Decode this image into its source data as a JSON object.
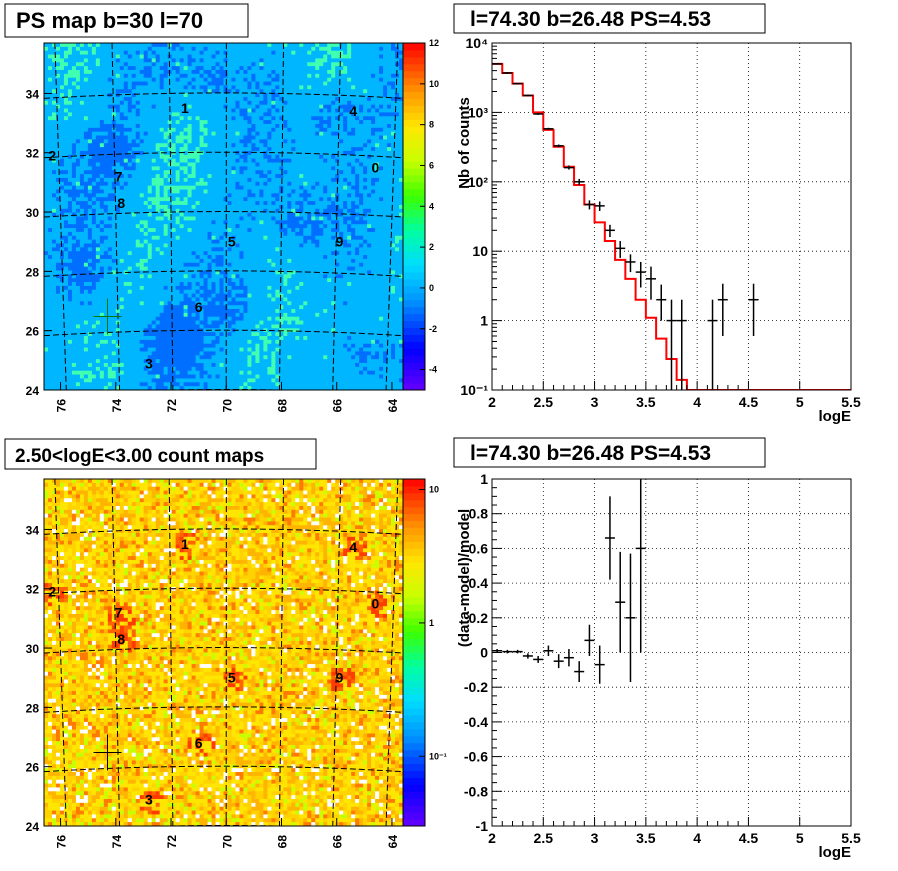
{
  "panels": {
    "ps_map": {
      "title": "PS map b=30 l=70",
      "x_ticks": [
        "76",
        "74",
        "72",
        "70",
        "68",
        "66",
        "64"
      ],
      "y_ticks": [
        "24",
        "26",
        "28",
        "30",
        "32",
        "34"
      ],
      "colorbar_ticks": [
        "-4",
        "-2",
        "0",
        "2",
        "4",
        "6",
        "8",
        "10",
        "12"
      ],
      "sources": [
        {
          "label": "0",
          "l": 64.6,
          "b": 31.5
        },
        {
          "label": "1",
          "l": 71.5,
          "b": 33.5
        },
        {
          "label": "2",
          "l": 76.3,
          "b": 31.9
        },
        {
          "label": "3",
          "l": 72.8,
          "b": 24.9
        },
        {
          "label": "4",
          "l": 65.4,
          "b": 33.4
        },
        {
          "label": "5",
          "l": 69.8,
          "b": 29.0
        },
        {
          "label": "6",
          "l": 71.0,
          "b": 26.8
        },
        {
          "label": "7",
          "l": 73.9,
          "b": 31.2
        },
        {
          "label": "8",
          "l": 73.8,
          "b": 30.3
        },
        {
          "label": "9",
          "l": 65.9,
          "b": 29.0
        }
      ],
      "marker": {
        "l": 74.3,
        "b": 26.48
      }
    },
    "count_map": {
      "title": "2.50<logE<3.00 count maps",
      "x_ticks": [
        "76",
        "74",
        "72",
        "70",
        "68",
        "66",
        "64"
      ],
      "y_ticks": [
        "24",
        "26",
        "28",
        "30",
        "32",
        "34"
      ],
      "colorbar_ticks": [
        "10",
        "1",
        "10⁻¹"
      ]
    },
    "spectrum": {
      "title": "l=74.30 b=26.48 PS=4.53",
      "xlabel": "logE",
      "ylabel": "Nb of counts",
      "x_ticks": [
        "2",
        "2.5",
        "3",
        "3.5",
        "4",
        "4.5",
        "5",
        "5.5"
      ],
      "y_ticks": [
        "10⁻¹",
        "1",
        "10",
        "10²",
        "10³",
        "10⁴"
      ]
    },
    "residual": {
      "title": "l=74.30 b=26.48 PS=4.53",
      "xlabel": "logE",
      "ylabel": "(data-model)/model",
      "x_ticks": [
        "2",
        "2.5",
        "3",
        "3.5",
        "4",
        "4.5",
        "5",
        "5.5"
      ],
      "y_ticks": [
        "-1",
        "-0.8",
        "-0.6",
        "-0.4",
        "-0.2",
        "0",
        "0.2",
        "0.4",
        "0.6",
        "0.8",
        "1"
      ]
    }
  },
  "chart_data": [
    {
      "type": "heatmap",
      "title": "PS map b=30 l=70",
      "xlim": [
        76.6,
        63.6
      ],
      "ylim": [
        24,
        35.7
      ],
      "zlim": [
        -5,
        12
      ],
      "colors": {
        "marker": "#007a00",
        "grid": "#000000"
      }
    },
    {
      "type": "heatmap",
      "title": "2.50<logE<3.00 count maps",
      "xlim": [
        76.6,
        63.6
      ],
      "ylim": [
        24,
        35.7
      ],
      "z_scale": "log",
      "zlim": [
        0.03,
        12
      ],
      "marker": {
        "l": 74.3,
        "b": 26.48
      }
    },
    {
      "type": "line",
      "title": "l=74.30 b=26.48 PS=4.53",
      "xlabel": "logE",
      "ylabel": "Nb of counts",
      "xlim": [
        2,
        5.5
      ],
      "ylim": [
        0.1,
        10000
      ],
      "y_scale": "log",
      "grid": true,
      "model_step": {
        "edges": [
          2.0,
          2.1,
          2.2,
          2.3,
          2.4,
          2.5,
          2.6,
          2.7,
          2.8,
          2.9,
          3.0,
          3.1,
          3.2,
          3.3,
          3.4,
          3.5,
          3.6,
          3.7,
          3.8,
          3.9,
          5.5
        ],
        "values": [
          5000,
          3700,
          2600,
          1750,
          1000,
          560,
          320,
          165,
          90,
          47,
          26,
          14,
          7.5,
          4.0,
          2.0,
          1.1,
          0.55,
          0.28,
          0.14,
          0.1
        ]
      },
      "data_points": {
        "x": [
          2.05,
          2.15,
          2.25,
          2.35,
          2.45,
          2.55,
          2.65,
          2.75,
          2.85,
          2.95,
          3.05,
          3.15,
          3.25,
          3.35,
          3.45,
          3.55,
          3.65,
          3.75,
          3.85,
          4.15,
          4.25,
          4.55
        ],
        "y": [
          5000,
          3700,
          2600,
          1750,
          950,
          580,
          330,
          160,
          100,
          47,
          45,
          20,
          11,
          7,
          5,
          4,
          2,
          1,
          1,
          1,
          2,
          2
        ],
        "y_lo": [
          4900,
          3600,
          2550,
          1700,
          920,
          560,
          315,
          150,
          90,
          40,
          38,
          16,
          8,
          5,
          3,
          2,
          1,
          0.1,
          0.1,
          0.1,
          0.6,
          0.6
        ],
        "y_hi": [
          5100,
          3800,
          2650,
          1800,
          980,
          600,
          345,
          172,
          110,
          54,
          52,
          24,
          14,
          9,
          7,
          6,
          3.3,
          2,
          2,
          2,
          3.4,
          3.4
        ]
      },
      "colors": {
        "model": "#ff0000",
        "data": "#000000"
      }
    },
    {
      "type": "scatter",
      "title": "l=74.30 b=26.48 PS=4.53",
      "xlabel": "logE",
      "ylabel": "(data-model)/model",
      "xlim": [
        2,
        5.5
      ],
      "ylim": [
        -1,
        1
      ],
      "grid": true,
      "x": [
        2.05,
        2.15,
        2.25,
        2.35,
        2.45,
        2.55,
        2.65,
        2.75,
        2.85,
        2.95,
        3.05,
        3.15,
        3.25,
        3.35,
        3.45
      ],
      "y": [
        0.01,
        0.005,
        0.005,
        -0.02,
        -0.04,
        0.01,
        -0.05,
        -0.03,
        -0.11,
        0.07,
        -0.07,
        0.66,
        0.29,
        0.2,
        0.6
      ],
      "y_err": [
        0.01,
        0.01,
        0.01,
        0.015,
        0.02,
        0.03,
        0.04,
        0.05,
        0.06,
        0.09,
        0.11,
        0.24,
        0.29,
        0.37,
        0.6
      ]
    }
  ]
}
